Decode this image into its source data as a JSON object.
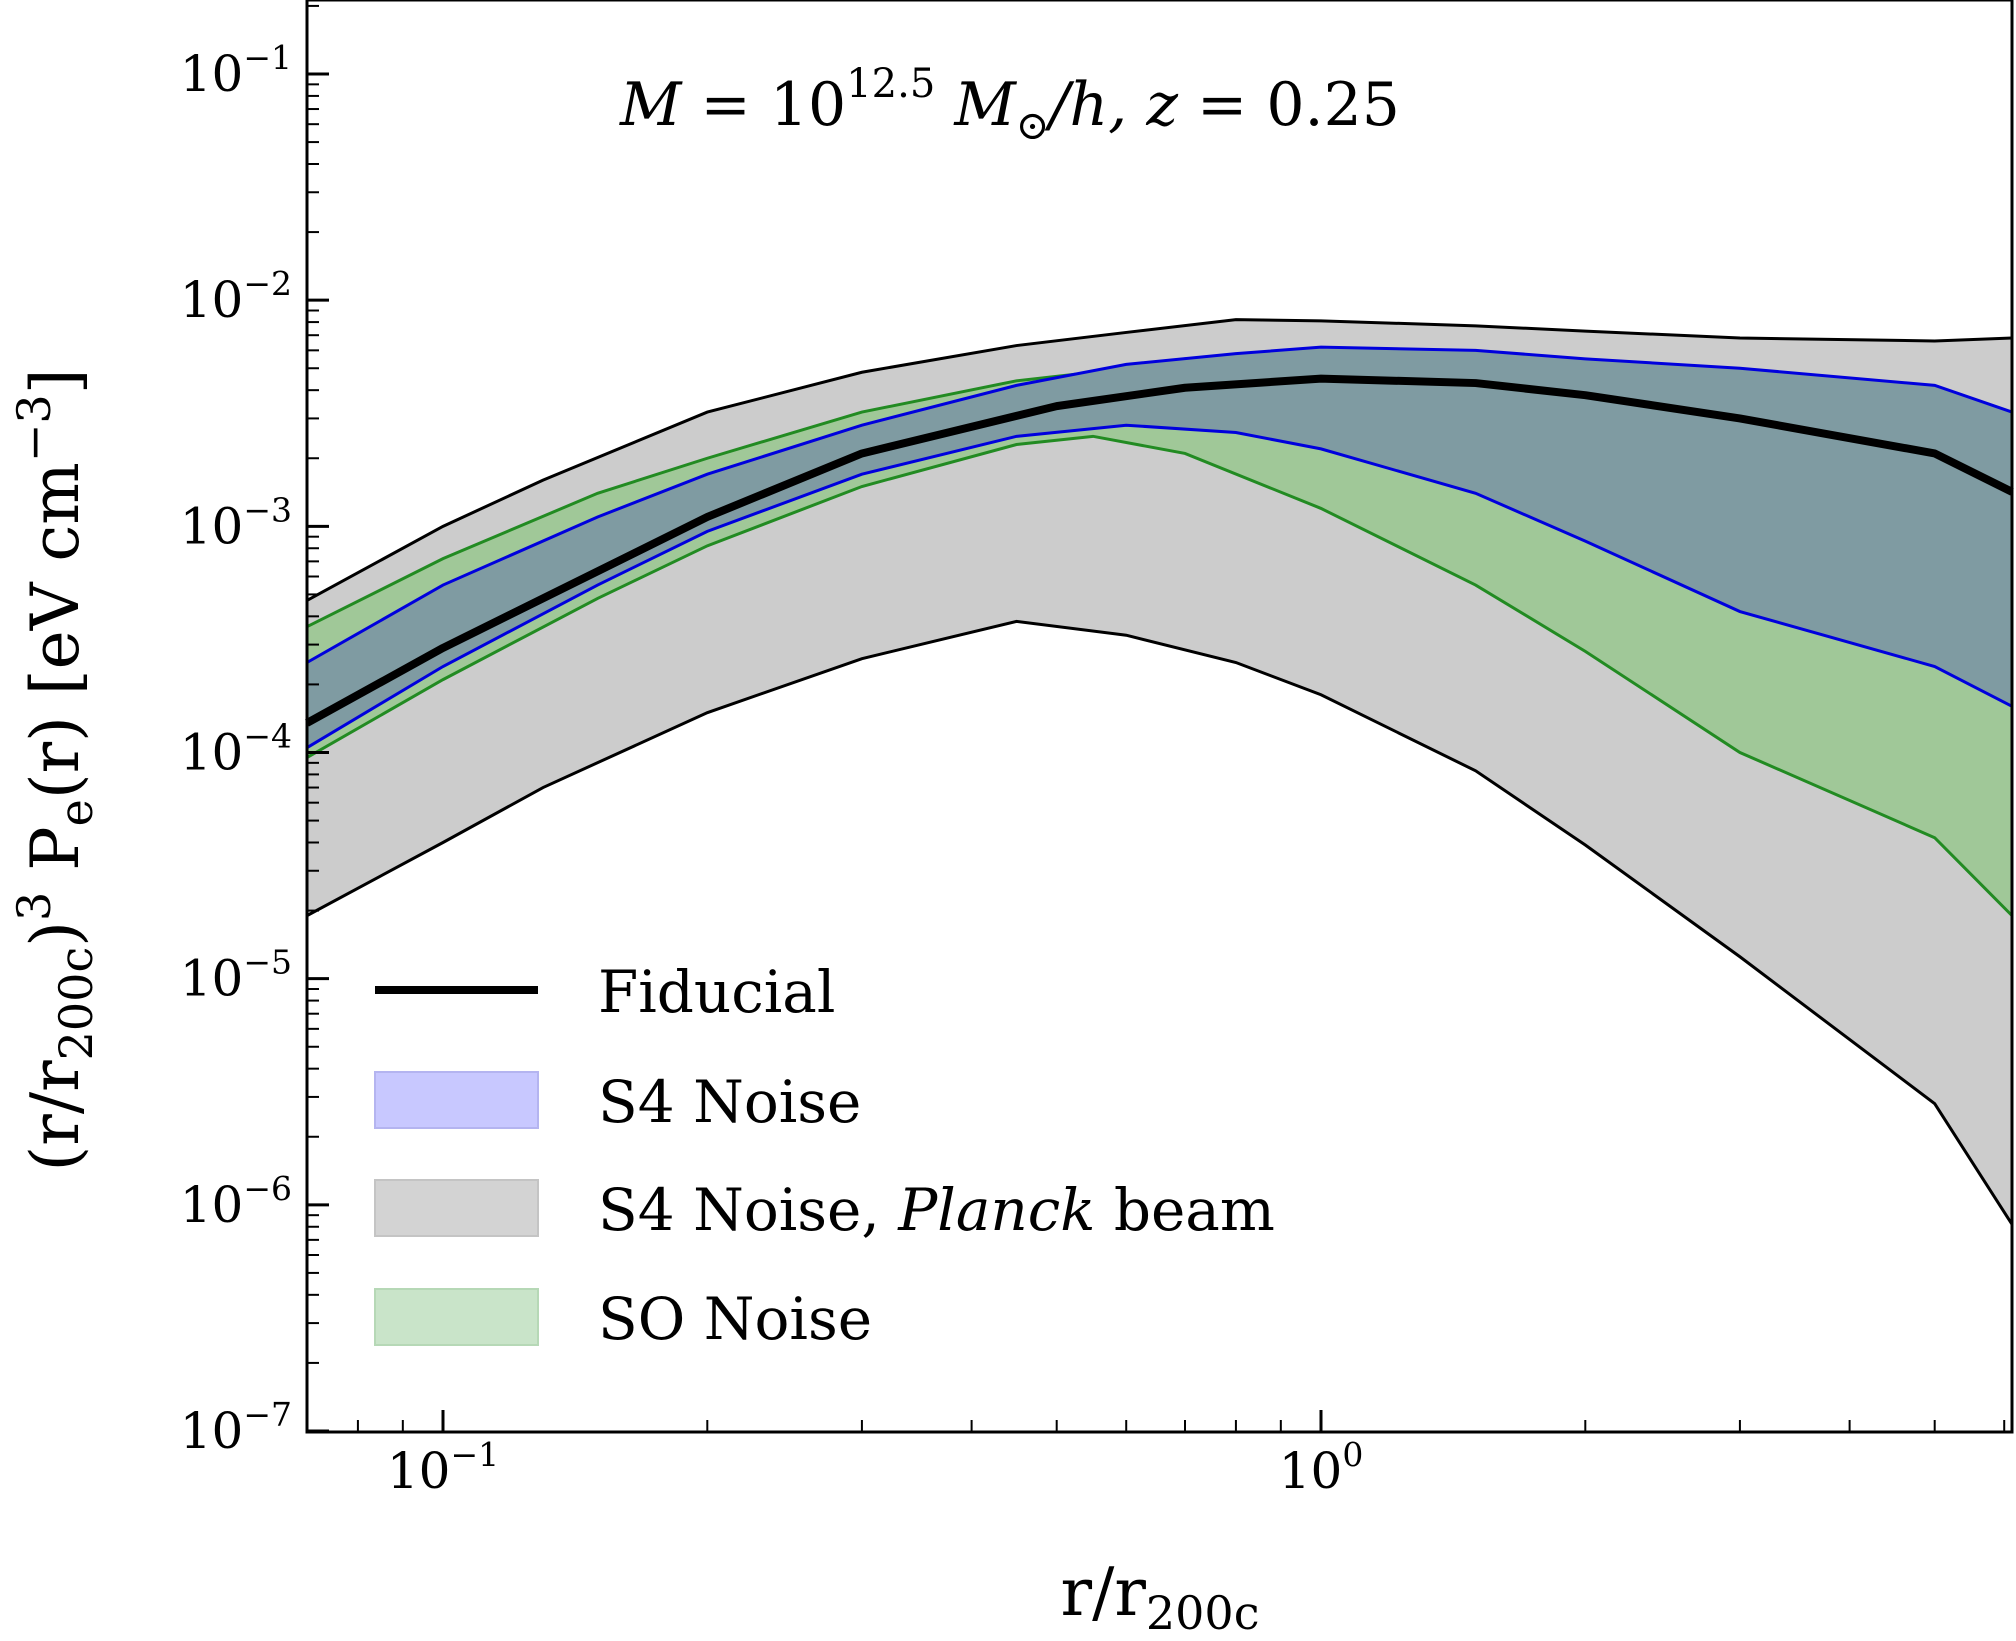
{
  "chart_data": {
    "type": "area",
    "title": "M = 10^12.5 M⊙/h,  z = 0.25",
    "title_parts": {
      "m": "M",
      "eq": " = 10",
      "exp": "12.5",
      "msun": " M",
      "sun": "⊙",
      "rest": "/h,  ",
      "z": "z",
      "zval": " = 0.25"
    },
    "xlabel": "r/r200c",
    "xlabel_parts": {
      "main": "r/r",
      "sub": "200c"
    },
    "ylabel": "(r/r200c)^3  Pe(r) [eV cm^-3]",
    "ylabel_parts": {
      "a": "(r/r",
      "b": "200c",
      "c": ")",
      "d": "3",
      "e": "  P",
      "f": "e",
      "g": "(r) [eV cm",
      "h": "−3",
      "i": "]"
    },
    "x_scale": "log",
    "y_scale": "log",
    "xlim": [
      0.07,
      7.5
    ],
    "ylim": [
      1e-07,
      0.2
    ],
    "xticks": [
      {
        "base": "10",
        "exp": "−1",
        "value": 0.1
      },
      {
        "base": "10",
        "exp": "0",
        "value": 1
      }
    ],
    "yticks": [
      {
        "base": "10",
        "exp": "−1",
        "value": 0.1
      },
      {
        "base": "10",
        "exp": "−2",
        "value": 0.01
      },
      {
        "base": "10",
        "exp": "−3",
        "value": 0.001
      },
      {
        "base": "10",
        "exp": "−4",
        "value": 0.0001
      },
      {
        "base": "10",
        "exp": "−5",
        "value": 1e-05
      },
      {
        "base": "10",
        "exp": "−6",
        "value": 1e-06
      },
      {
        "base": "10",
        "exp": "−7",
        "value": 1e-07
      }
    ],
    "legend_position": "lower-left",
    "legend": [
      {
        "label": "Fiducial",
        "kind": "line",
        "color": "#000000"
      },
      {
        "label": "S4 Noise",
        "kind": "patch",
        "color": "#c8c8ff"
      },
      {
        "label_prefix": "S4 Noise, ",
        "label_italic": "Planck",
        "label_suffix": " beam",
        "kind": "patch",
        "color": "#d3d3d3"
      },
      {
        "label": "SO Noise",
        "kind": "patch",
        "color": "#c9e4c9"
      }
    ],
    "fiducial": {
      "name": "Fiducial",
      "color": "#000000",
      "x": [
        0.07,
        0.1,
        0.2,
        0.3,
        0.5,
        0.7,
        1.0,
        1.5,
        2.0,
        3.0,
        5.0,
        7.5
      ],
      "y": [
        0.000135,
        0.00029,
        0.0011,
        0.0021,
        0.0034,
        0.0041,
        0.0045,
        0.0043,
        0.0038,
        0.003,
        0.0021,
        0.00142
      ]
    },
    "bands": [
      {
        "name": "S4 Noise, Planck beam",
        "fill": "#cccccc",
        "edge": "#000000",
        "x": [
          0.07,
          0.1,
          0.13,
          0.2,
          0.3,
          0.45,
          0.6,
          0.8,
          1.0,
          1.5,
          2.0,
          3.0,
          5.0,
          7.5
        ],
        "upper": [
          0.00047,
          0.001,
          0.0016,
          0.0032,
          0.0048,
          0.0063,
          0.0072,
          0.0082,
          0.0081,
          0.0077,
          0.0073,
          0.0068,
          0.0066,
          0.0068
        ],
        "lower": [
          1.9e-05,
          4e-05,
          7e-05,
          0.00015,
          0.00026,
          0.00038,
          0.00033,
          0.00025,
          0.00018,
          8.3e-05,
          3.9e-05,
          1.25e-05,
          2.8e-06,
          8.2e-07
        ]
      },
      {
        "name": "SO Noise",
        "fill": "#a0c898",
        "edge": "#228b22",
        "x": [
          0.07,
          0.1,
          0.15,
          0.2,
          0.3,
          0.45,
          0.55,
          0.7,
          1.0,
          1.5,
          2.0,
          3.0,
          5.0,
          7.5
        ],
        "upper": [
          0.00036,
          0.00072,
          0.0014,
          0.002,
          0.0032,
          0.0044,
          0.0048,
          0.0055,
          0.006,
          0.0057,
          0.0052,
          0.0045,
          0.0036,
          0.0028
        ],
        "lower": [
          9.5e-05,
          0.00021,
          0.00048,
          0.00082,
          0.0015,
          0.0023,
          0.0025,
          0.0021,
          0.0012,
          0.00055,
          0.00028,
          0.0001,
          4.2e-05,
          1.9e-05
        ]
      },
      {
        "name": "S4 Noise",
        "fill": "#7f9ba2",
        "edge": "#0000dd",
        "x": [
          0.07,
          0.1,
          0.15,
          0.2,
          0.3,
          0.45,
          0.6,
          0.8,
          1.0,
          1.5,
          2.0,
          3.0,
          5.0,
          7.5
        ],
        "upper": [
          0.00025,
          0.00055,
          0.0011,
          0.0017,
          0.0028,
          0.0042,
          0.0052,
          0.0058,
          0.0062,
          0.006,
          0.0055,
          0.005,
          0.0042,
          0.0032
        ],
        "lower": [
          0.000105,
          0.00024,
          0.00055,
          0.00095,
          0.0017,
          0.0025,
          0.0028,
          0.0026,
          0.0022,
          0.0014,
          0.00086,
          0.00042,
          0.00024,
          0.00016
        ]
      }
    ]
  }
}
